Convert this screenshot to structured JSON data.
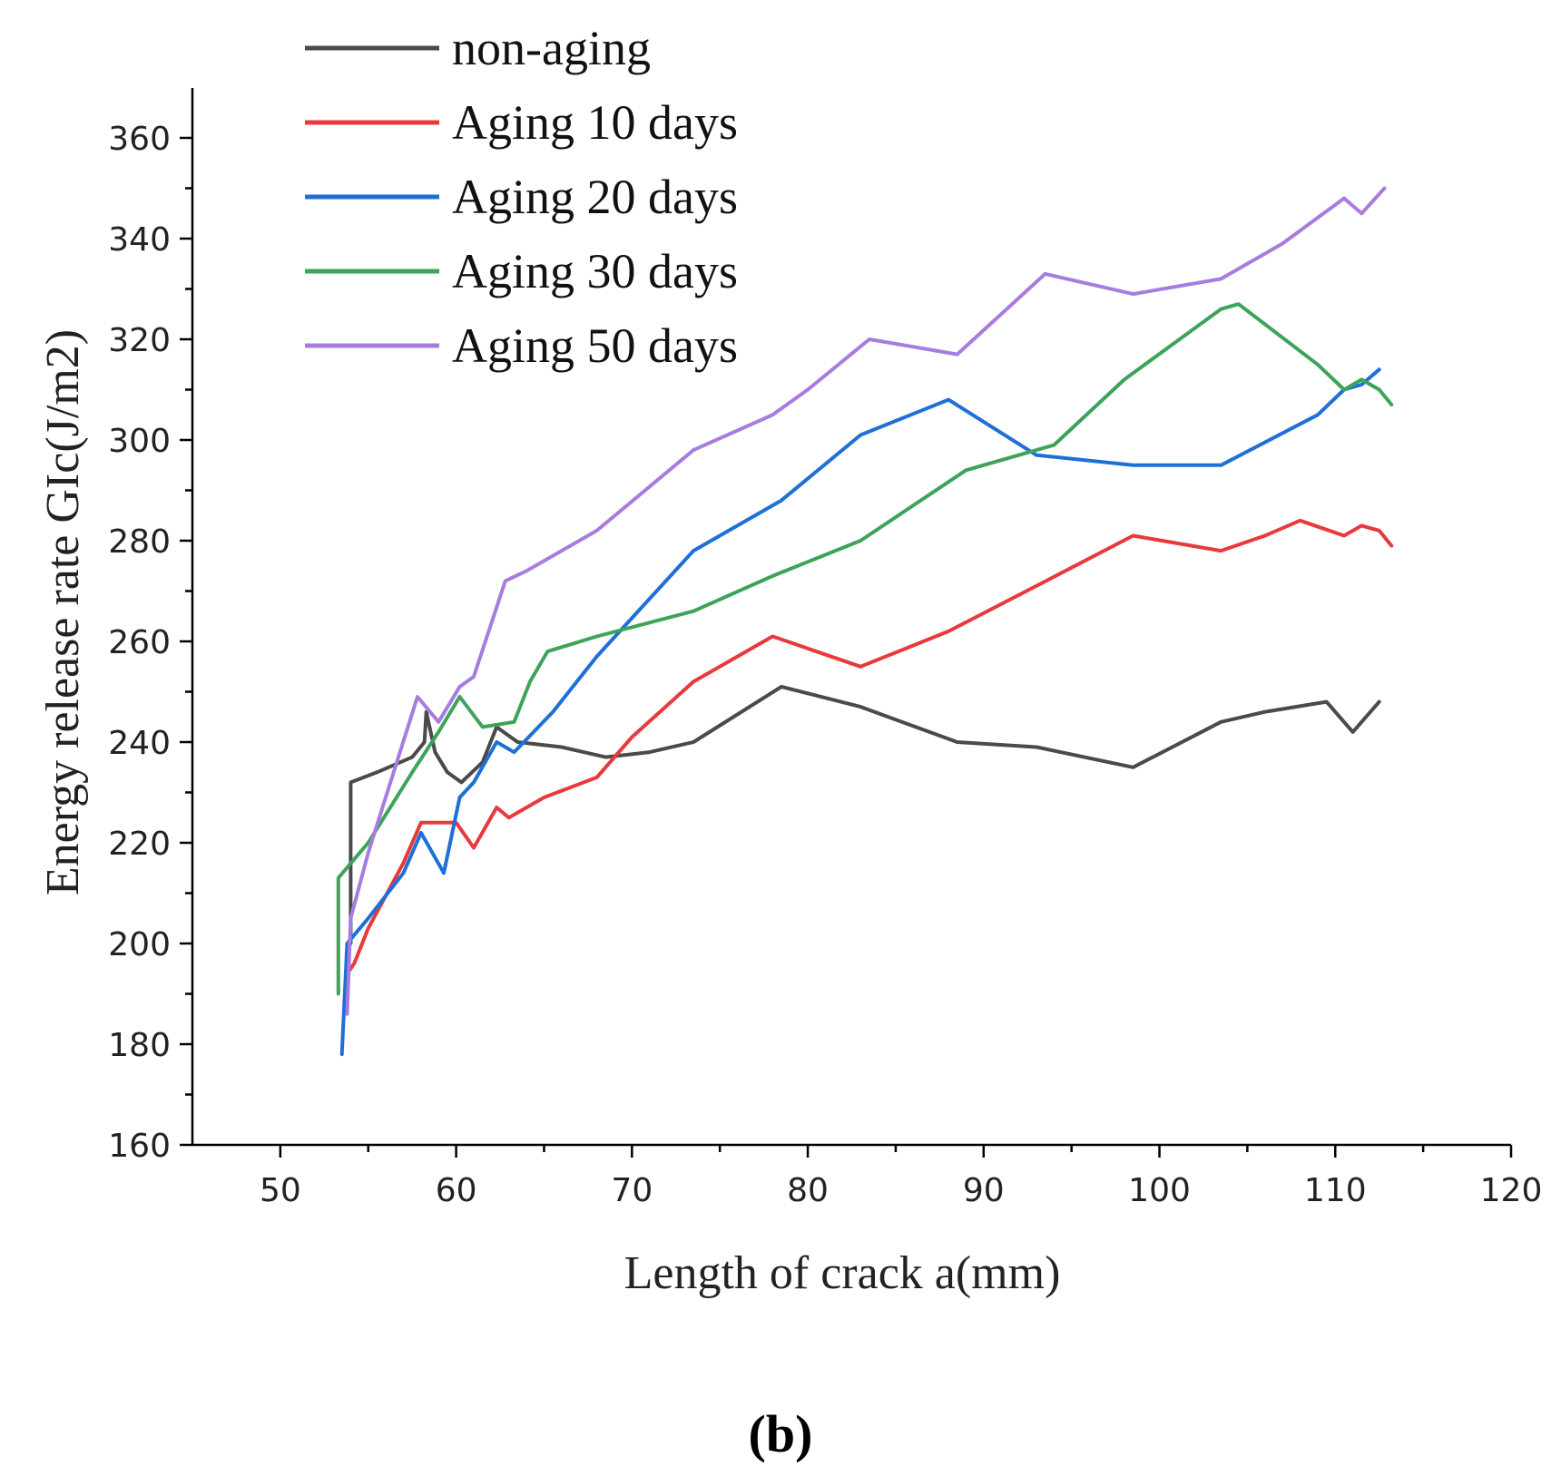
{
  "chart_data": {
    "type": "line",
    "title": "",
    "panel_label": "(b)",
    "xlabel": "Length of crack a(mm)",
    "ylabel": "Energy release rate GIc(J/m2)",
    "xlim": [
      45,
      120
    ],
    "ylim": [
      160,
      370
    ],
    "x_ticks": [
      50,
      60,
      70,
      80,
      90,
      100,
      110,
      120
    ],
    "y_ticks": [
      160,
      180,
      200,
      220,
      240,
      260,
      280,
      300,
      320,
      340,
      360
    ],
    "legend_position": "top-left",
    "series": [
      {
        "name": "non-aging",
        "color": "#4a4a4a",
        "points": [
          [
            54.0,
            200
          ],
          [
            54.0,
            232
          ],
          [
            55.5,
            234
          ],
          [
            57.5,
            237
          ],
          [
            58.2,
            240
          ],
          [
            58.3,
            246
          ],
          [
            58.8,
            238
          ],
          [
            59.5,
            234
          ],
          [
            60.3,
            232
          ],
          [
            61.5,
            236
          ],
          [
            62.3,
            243
          ],
          [
            63.5,
            240
          ],
          [
            66,
            239
          ],
          [
            68.5,
            237
          ],
          [
            71,
            238
          ],
          [
            73.5,
            240
          ],
          [
            78.5,
            251
          ],
          [
            83,
            247
          ],
          [
            88.5,
            240
          ],
          [
            93,
            239
          ],
          [
            98.5,
            235
          ],
          [
            103.5,
            244
          ],
          [
            106,
            246
          ],
          [
            109.5,
            248
          ],
          [
            111,
            242
          ],
          [
            112.5,
            248
          ]
        ]
      },
      {
        "name": "Aging 10 days",
        "color": "#e8393c",
        "points": [
          [
            53.8,
            194
          ],
          [
            54.2,
            196
          ],
          [
            55,
            203
          ],
          [
            57,
            216
          ],
          [
            58,
            224
          ],
          [
            60,
            224
          ],
          [
            61,
            219
          ],
          [
            62.3,
            227
          ],
          [
            63,
            225
          ],
          [
            65,
            229
          ],
          [
            68,
            233
          ],
          [
            70,
            241
          ],
          [
            73.5,
            252
          ],
          [
            78,
            261
          ],
          [
            83,
            255
          ],
          [
            88,
            262
          ],
          [
            93,
            271
          ],
          [
            98.5,
            281
          ],
          [
            103.5,
            278
          ],
          [
            106,
            281
          ],
          [
            108,
            284
          ],
          [
            110.5,
            281
          ],
          [
            111.5,
            283
          ],
          [
            112.5,
            282
          ],
          [
            113.2,
            279
          ]
        ]
      },
      {
        "name": "Aging 20 days",
        "color": "#1f6fd8",
        "points": [
          [
            53.5,
            178
          ],
          [
            53.8,
            200
          ],
          [
            55,
            205
          ],
          [
            57,
            214
          ],
          [
            58,
            222
          ],
          [
            59.3,
            214
          ],
          [
            60.2,
            229
          ],
          [
            61,
            232
          ],
          [
            62.3,
            240
          ],
          [
            63.3,
            238
          ],
          [
            65.5,
            246
          ],
          [
            68,
            257
          ],
          [
            73.5,
            278
          ],
          [
            78.5,
            288
          ],
          [
            83,
            301
          ],
          [
            88,
            308
          ],
          [
            93,
            297
          ],
          [
            98.5,
            295
          ],
          [
            103.5,
            295
          ],
          [
            109,
            305
          ],
          [
            110.5,
            310
          ],
          [
            111.5,
            311
          ],
          [
            112.5,
            314
          ]
        ]
      },
      {
        "name": "Aging 30 days",
        "color": "#3ea35a",
        "points": [
          [
            53.3,
            190
          ],
          [
            53.3,
            213
          ],
          [
            55,
            220
          ],
          [
            57.5,
            234
          ],
          [
            59,
            242
          ],
          [
            60.2,
            249
          ],
          [
            61.5,
            243
          ],
          [
            63.3,
            244
          ],
          [
            64.2,
            252
          ],
          [
            65.2,
            258
          ],
          [
            68,
            261
          ],
          [
            73.5,
            266
          ],
          [
            78,
            273
          ],
          [
            83,
            280
          ],
          [
            86,
            287
          ],
          [
            89,
            294
          ],
          [
            91,
            296
          ],
          [
            94,
            299
          ],
          [
            98,
            312
          ],
          [
            103.5,
            326
          ],
          [
            104.5,
            327
          ],
          [
            109,
            315
          ],
          [
            110.5,
            310
          ],
          [
            111.5,
            312
          ],
          [
            112.5,
            310
          ],
          [
            113.2,
            307
          ]
        ]
      },
      {
        "name": "Aging 50 days",
        "color": "#a77ce0",
        "points": [
          [
            53.8,
            186
          ],
          [
            54,
            205
          ],
          [
            55,
            218
          ],
          [
            57.8,
            249
          ],
          [
            59,
            244
          ],
          [
            60.2,
            251
          ],
          [
            61,
            253
          ],
          [
            62.8,
            272
          ],
          [
            64,
            274
          ],
          [
            68,
            282
          ],
          [
            73.5,
            298
          ],
          [
            78,
            305
          ],
          [
            80,
            310
          ],
          [
            83.5,
            320
          ],
          [
            88.5,
            317
          ],
          [
            93.5,
            333
          ],
          [
            98.5,
            329
          ],
          [
            103.5,
            332
          ],
          [
            107,
            339
          ],
          [
            110.5,
            348
          ],
          [
            111.5,
            345
          ],
          [
            112.8,
            350
          ]
        ]
      }
    ]
  }
}
